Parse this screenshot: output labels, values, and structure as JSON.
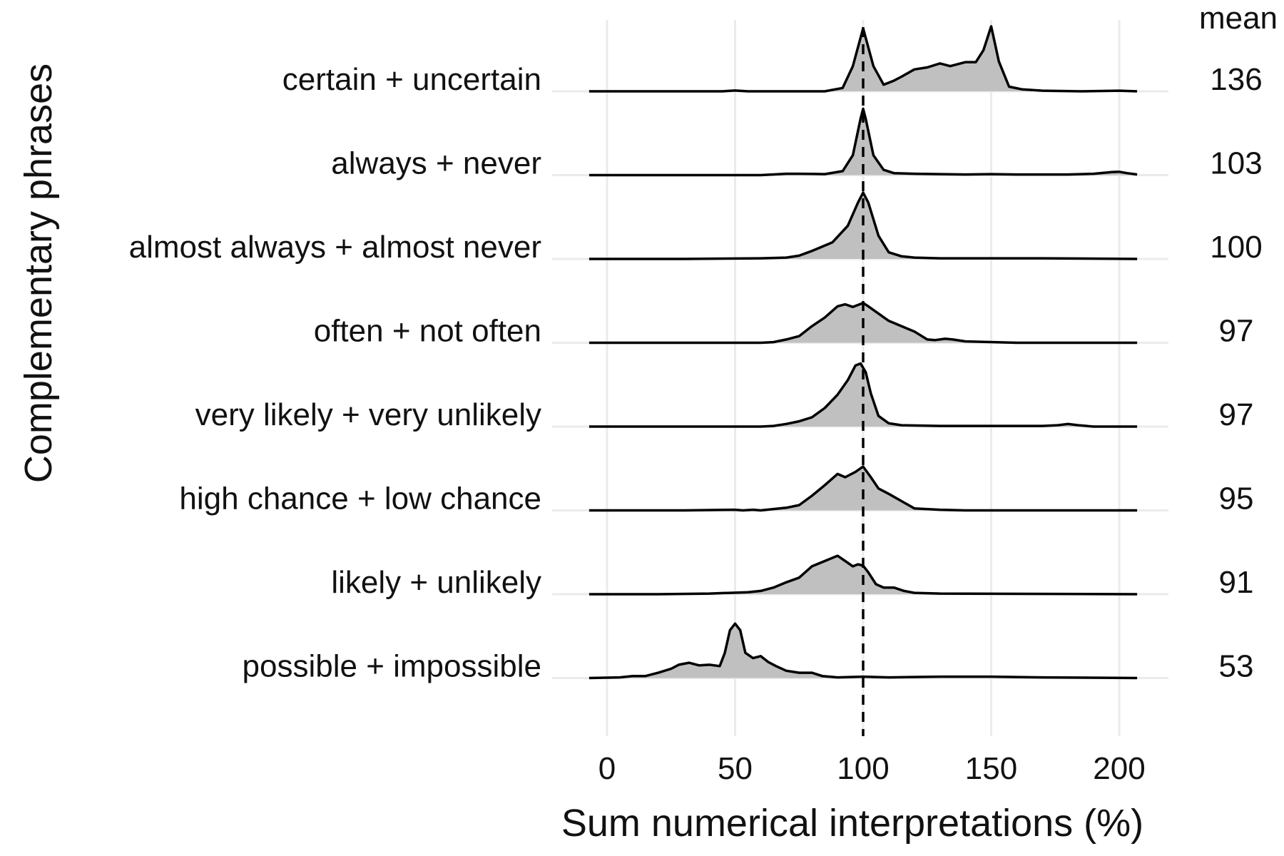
{
  "chart_data": {
    "type": "ridgeline",
    "xlabel": "Sum numerical interpretations (%)",
    "ylabel": "Complementary phrases",
    "mean_header": "mean",
    "xlim": [
      -7,
      207
    ],
    "x_ticks": [
      0,
      50,
      100,
      150,
      200
    ],
    "x_tick_labels": [
      "0",
      "50",
      "100",
      "150",
      "200"
    ],
    "reference_line": 100,
    "fill_color": "#c0c0c0",
    "line_color": "#000000",
    "grid": true,
    "series": [
      {
        "name": "certain + uncertain",
        "mean": "136",
        "x": [
          -7,
          15,
          45,
          50,
          55,
          70,
          85,
          92,
          96,
          100,
          104,
          108,
          112,
          115,
          120,
          125,
          130,
          134,
          140,
          144,
          147,
          150,
          153,
          157,
          162,
          170,
          185,
          200,
          207
        ],
        "y": [
          0,
          0,
          0,
          0.012,
          0,
          0,
          0,
          0.05,
          0.38,
          0.95,
          0.38,
          0.1,
          0.16,
          0.22,
          0.33,
          0.36,
          0.42,
          0.38,
          0.44,
          0.44,
          0.62,
          0.98,
          0.45,
          0.07,
          0.03,
          0.01,
          0,
          0.01,
          0
        ]
      },
      {
        "name": "always + never",
        "mean": "103",
        "x": [
          -7,
          20,
          50,
          60,
          70,
          75,
          85,
          92,
          96,
          99,
          100,
          101,
          104,
          108,
          112,
          120,
          140,
          150,
          160,
          180,
          190,
          197,
          200,
          203,
          207
        ],
        "y": [
          0,
          0,
          0,
          0,
          0.02,
          0.02,
          0.015,
          0.06,
          0.3,
          0.85,
          1.0,
          0.85,
          0.3,
          0.08,
          0.03,
          0.02,
          0.01,
          0.015,
          0.01,
          0.01,
          0.02,
          0.045,
          0.05,
          0.03,
          0.01
        ]
      },
      {
        "name": "almost always + almost never",
        "mean": "100",
        "x": [
          -7,
          30,
          60,
          70,
          75,
          80,
          88,
          94,
          98,
          100,
          102,
          106,
          110,
          115,
          120,
          130,
          150,
          170,
          207
        ],
        "y": [
          0,
          0,
          0.01,
          0.02,
          0.05,
          0.12,
          0.25,
          0.5,
          0.85,
          1.0,
          0.85,
          0.35,
          0.1,
          0.04,
          0.02,
          0.01,
          0.01,
          0.01,
          0
        ]
      },
      {
        "name": "often + not often",
        "mean": "97",
        "x": [
          -7,
          30,
          50,
          60,
          65,
          70,
          75,
          80,
          85,
          90,
          93,
          96,
          100,
          102,
          106,
          110,
          115,
          120,
          125,
          128,
          132,
          135,
          140,
          160,
          207
        ],
        "y": [
          0,
          0,
          0,
          0,
          0.01,
          0.05,
          0.1,
          0.25,
          0.38,
          0.55,
          0.58,
          0.54,
          0.6,
          0.55,
          0.44,
          0.33,
          0.25,
          0.17,
          0.05,
          0.04,
          0.06,
          0.05,
          0.02,
          0,
          0
        ]
      },
      {
        "name": "very likely + very unlikely",
        "mean": "97",
        "x": [
          -7,
          40,
          60,
          65,
          70,
          75,
          80,
          85,
          90,
          94,
          97,
          99,
          101,
          103,
          106,
          110,
          115,
          130,
          150,
          170,
          176,
          180,
          184,
          190,
          207
        ],
        "y": [
          0,
          0,
          0,
          0.01,
          0.04,
          0.08,
          0.14,
          0.28,
          0.48,
          0.7,
          0.92,
          0.95,
          0.82,
          0.5,
          0.16,
          0.05,
          0.02,
          0.01,
          0.01,
          0.01,
          0.02,
          0.04,
          0.02,
          0,
          0
        ]
      },
      {
        "name": "high chance + low chance",
        "mean": "95",
        "x": [
          -7,
          30,
          50,
          53,
          57,
          60,
          65,
          70,
          75,
          80,
          85,
          90,
          93,
          97,
          100,
          103,
          106,
          110,
          115,
          120,
          130,
          140,
          207
        ],
        "y": [
          0,
          0,
          0.01,
          0,
          0.01,
          0,
          0.02,
          0.04,
          0.08,
          0.22,
          0.38,
          0.55,
          0.5,
          0.58,
          0.66,
          0.5,
          0.33,
          0.25,
          0.14,
          0.03,
          0.01,
          0,
          0
        ]
      },
      {
        "name": "likely + unlikely",
        "mean": "91",
        "x": [
          -7,
          20,
          40,
          55,
          60,
          65,
          70,
          75,
          80,
          85,
          90,
          93,
          96,
          98,
          100,
          102,
          105,
          108,
          112,
          116,
          120,
          130,
          207
        ],
        "y": [
          0,
          0,
          0.01,
          0.03,
          0.05,
          0.1,
          0.18,
          0.25,
          0.42,
          0.5,
          0.58,
          0.5,
          0.42,
          0.45,
          0.43,
          0.33,
          0.15,
          0.1,
          0.1,
          0.05,
          0.02,
          0.01,
          0
        ]
      },
      {
        "name": "possible + impossible",
        "mean": "53",
        "x": [
          -7,
          5,
          10,
          15,
          20,
          25,
          28,
          32,
          36,
          40,
          44,
          46,
          48,
          50,
          52,
          54,
          57,
          60,
          63,
          66,
          70,
          75,
          80,
          84,
          90,
          100,
          110,
          130,
          150,
          170,
          207
        ],
        "y": [
          0,
          0.01,
          0.03,
          0.03,
          0.08,
          0.14,
          0.2,
          0.23,
          0.19,
          0.2,
          0.18,
          0.38,
          0.72,
          0.82,
          0.72,
          0.38,
          0.3,
          0.33,
          0.24,
          0.18,
          0.11,
          0.08,
          0.08,
          0.03,
          0.01,
          0.02,
          0.01,
          0.02,
          0.02,
          0.01,
          0
        ]
      }
    ]
  }
}
